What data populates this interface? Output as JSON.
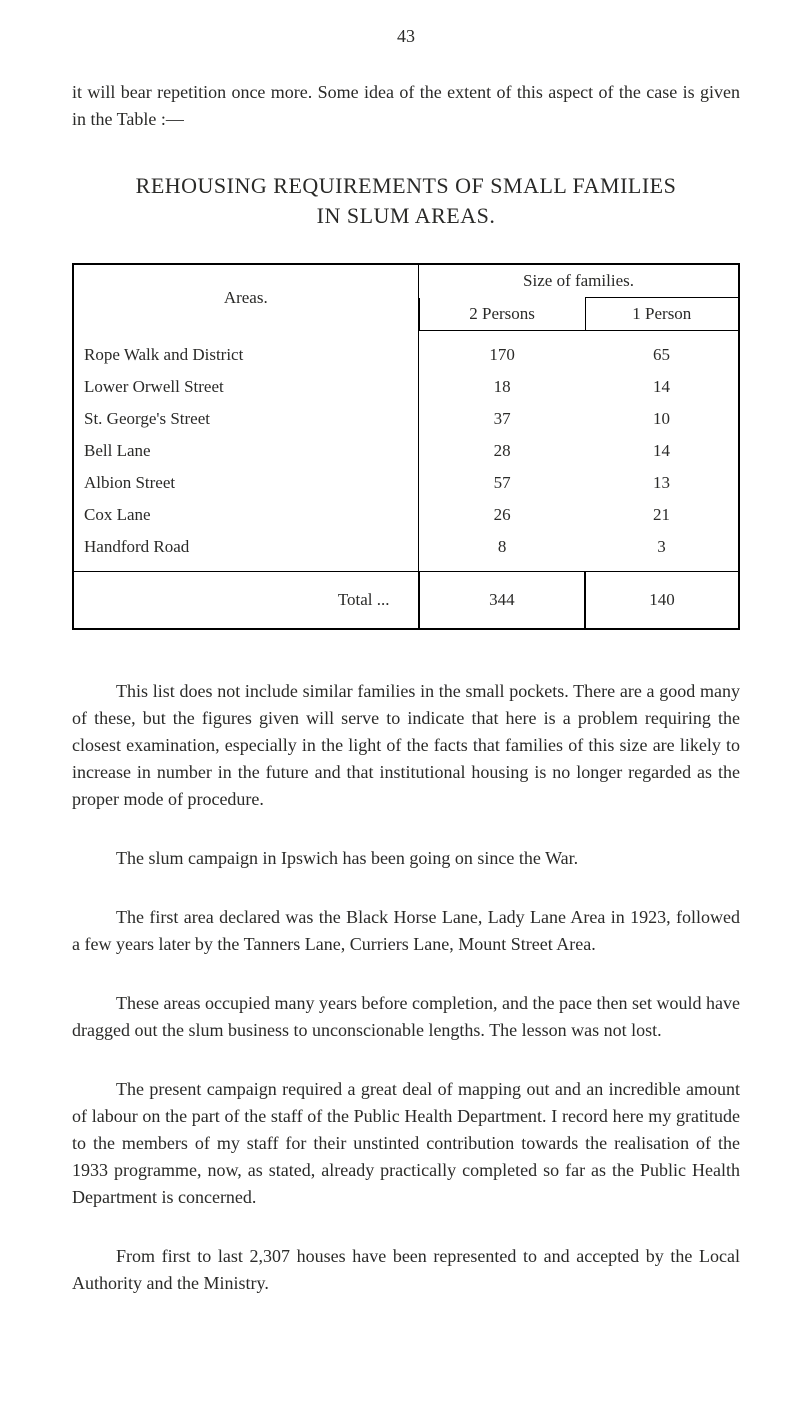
{
  "page_number": "43",
  "intro_text": "it will bear repetition once more.   Some idea of the extent of this aspect of the case is given in the Table :—",
  "section": {
    "title_line1": "REHOUSING   REQUIREMENTS   OF   SMALL   FAMILIES",
    "title_line2": "IN   SLUM   AREAS."
  },
  "table": {
    "headers": {
      "areas": "Areas.",
      "size_of_families": "Size of families.",
      "two_persons": "2 Persons",
      "one_person": "1 Person"
    },
    "rows": [
      {
        "area": "Rope Walk and District",
        "two": "170",
        "one": "65"
      },
      {
        "area": "Lower Orwell Street",
        "two": "18",
        "one": "14"
      },
      {
        "area": "St. George's Street",
        "two": "37",
        "one": "10"
      },
      {
        "area": "Bell Lane",
        "two": "28",
        "one": "14"
      },
      {
        "area": "Albion Street",
        "two": "57",
        "one": "13"
      },
      {
        "area": "Cox Lane",
        "two": "26",
        "one": "21"
      },
      {
        "area": "Handford Road",
        "two": "8",
        "one": "3"
      }
    ],
    "total_label": "Total  ...",
    "total_two": "344",
    "total_one": "140"
  },
  "paragraphs": {
    "p1": "This list does not include similar families in the small pockets. There are a good many of these, but the figures given will serve to indicate that here is a problem requiring the closest examination, especially in the light of the facts that families of this size are likely to increase in number in the future and that institutional housing is no longer regarded as the proper mode of procedure.",
    "p2": "The slum campaign in Ipswich has been going on since the War.",
    "p3": "The first area declared was the Black Horse Lane, Lady Lane Area in 1923, followed a few years later by the Tanners Lane, Curriers Lane, Mount Street Area.",
    "p4": "These areas occupied many years before completion, and the pace then set would have dragged out the slum business to unconscionable lengths.  The lesson was not lost.",
    "p5": "The present campaign required a great deal of mapping out and an incredible amount of labour on the part of the staff of the Public Health Department.  I record here my gratitude to the members of my staff for their unstinted contribution towards the realisation of the 1933 programme, now, as stated, already practically completed so far as the Public Health Department is concerned.",
    "p6": "From first to last 2,307 houses have been represented to and accepted by the Local Authority and the Ministry."
  }
}
